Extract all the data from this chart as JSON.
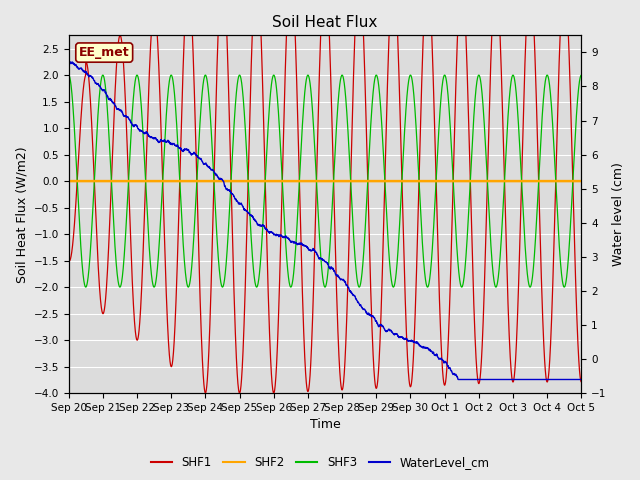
{
  "title": "Soil Heat Flux",
  "xlabel": "Time",
  "ylabel_left": "Soil Heat Flux (W/m2)",
  "ylabel_right": "Water level (cm)",
  "ylim_left": [
    -4.0,
    2.75
  ],
  "ylim_right": [
    -1.0,
    9.5
  ],
  "annotation_text": "EE_met",
  "annotation_color": "#8B0000",
  "annotation_bg": "#FFFFCC",
  "fig_bg_color": "#E8E8E8",
  "plot_bg_color": "#DCDCDC",
  "colors": {
    "SHF1": "#CC0000",
    "SHF2": "#FFA500",
    "SHF3": "#00BB00",
    "WaterLevel_cm": "#0000CC"
  },
  "x_tick_labels": [
    "Sep 20",
    "Sep 21",
    "Sep 22",
    "Sep 23",
    "Sep 24",
    "Sep 25",
    "Sep 26",
    "Sep 27",
    "Sep 28",
    "Sep 29",
    "Sep 30",
    "Oct 1",
    "Oct 2",
    "Oct 3",
    "Oct 4",
    "Oct 5"
  ],
  "title_fontsize": 11,
  "label_fontsize": 9,
  "tick_fontsize": 7.5,
  "legend_fontsize": 8.5
}
